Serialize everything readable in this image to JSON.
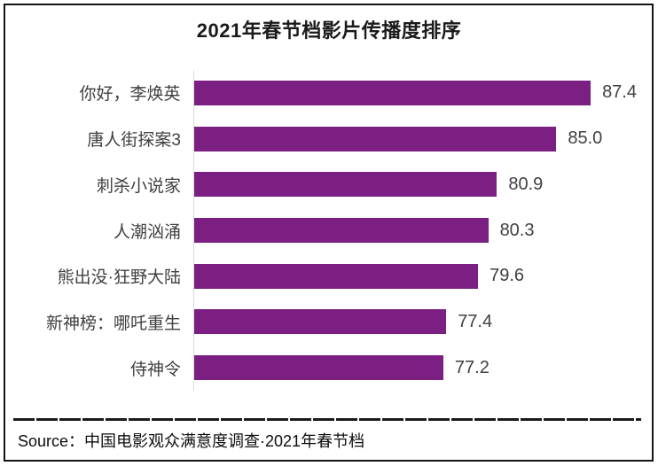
{
  "title": "2021年春节档影片传播度排序",
  "chart_data": {
    "type": "bar",
    "orientation": "horizontal",
    "title": "2021年春节档影片传播度排序",
    "categories": [
      "你好，李焕英",
      "唐人街探案3",
      "刺杀小说家",
      "人潮汹涌",
      "熊出没·狂野大陆",
      "新神榜：哪吒重生",
      "侍神令"
    ],
    "values": [
      87.4,
      85.0,
      80.9,
      80.3,
      79.6,
      77.4,
      77.2
    ],
    "value_labels": [
      "87.4",
      "85.0",
      "80.9",
      "80.3",
      "79.6",
      "77.4",
      "77.2"
    ],
    "xlabel": "",
    "ylabel": "",
    "xlim": [
      60,
      90
    ],
    "grid": false,
    "legend": false,
    "bar_color": "#7B2082",
    "axis_line_color": "#d9d9d9",
    "value_label_color": "#404040",
    "category_label_color": "#404040"
  },
  "source": {
    "label": "Source：中国电影观众满意度调查·2021年春节档"
  },
  "frame": {
    "border_color": "#141414"
  }
}
